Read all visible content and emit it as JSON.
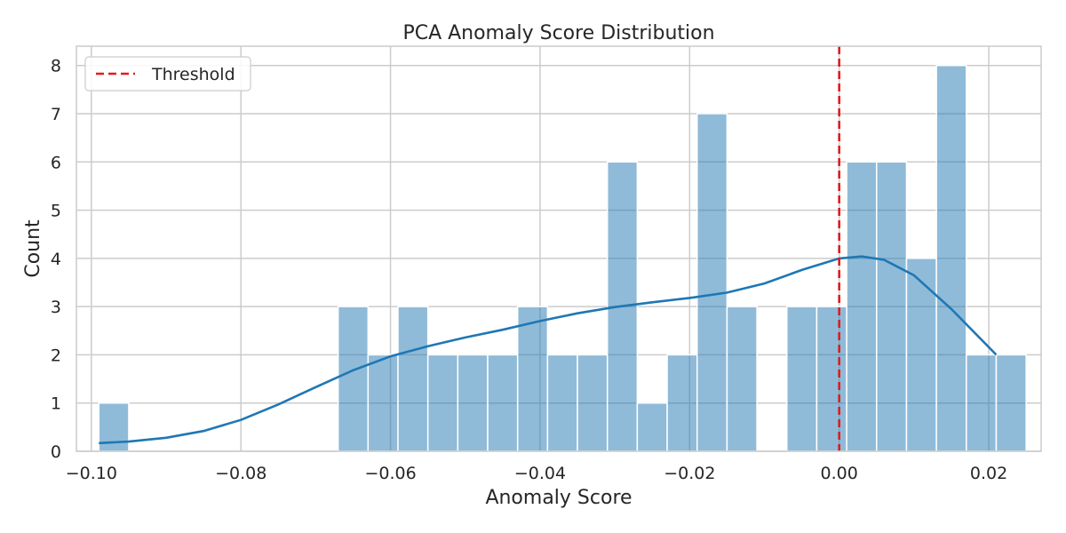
{
  "chart_data": {
    "type": "bar",
    "title": "PCA Anomaly Score Distribution",
    "xlabel": "Anomaly Score",
    "ylabel": "Count",
    "xlim": [
      -0.102,
      0.027
    ],
    "ylim": [
      0,
      8.4
    ],
    "xticks": [
      -0.1,
      -0.08,
      -0.06,
      -0.04,
      -0.02,
      0.0,
      0.02
    ],
    "xtick_labels": [
      "−0.10",
      "−0.08",
      "−0.06",
      "−0.04",
      "−0.02",
      "0.00",
      "0.02"
    ],
    "yticks": [
      0,
      1,
      2,
      3,
      4,
      5,
      6,
      7,
      8
    ],
    "ytick_labels": [
      "0",
      "1",
      "2",
      "3",
      "4",
      "5",
      "6",
      "7",
      "8"
    ],
    "grid": true,
    "legend": {
      "placement": "top-left",
      "entries": [
        {
          "label": "Threshold",
          "style": "dashed",
          "color": "#e41a1c"
        }
      ]
    },
    "bin_start": -0.099,
    "bin_width": 0.004,
    "counts": [
      1,
      0,
      0,
      0,
      0,
      0,
      0,
      0,
      3,
      2,
      3,
      2,
      2,
      2,
      3,
      2,
      2,
      6,
      1,
      2,
      7,
      3,
      0,
      3,
      3,
      6,
      6,
      4,
      8,
      2,
      2
    ],
    "bar_color": "#1f77b4",
    "kde": {
      "color": "#1f77b4",
      "x": [
        -0.099,
        -0.095,
        -0.09,
        -0.085,
        -0.08,
        -0.075,
        -0.07,
        -0.065,
        -0.06,
        -0.055,
        -0.05,
        -0.045,
        -0.04,
        -0.035,
        -0.03,
        -0.025,
        -0.02,
        -0.015,
        -0.01,
        -0.005,
        0.0,
        0.003,
        0.006,
        0.01,
        0.015,
        0.021
      ],
      "y": [
        0.17,
        0.2,
        0.28,
        0.42,
        0.65,
        0.97,
        1.33,
        1.68,
        1.97,
        2.18,
        2.36,
        2.52,
        2.7,
        2.86,
        2.99,
        3.09,
        3.18,
        3.29,
        3.48,
        3.76,
        4.0,
        4.04,
        3.97,
        3.65,
        2.95,
        2.0
      ]
    },
    "threshold": {
      "label": "Threshold",
      "x": 0.0,
      "color": "#e41a1c"
    }
  }
}
